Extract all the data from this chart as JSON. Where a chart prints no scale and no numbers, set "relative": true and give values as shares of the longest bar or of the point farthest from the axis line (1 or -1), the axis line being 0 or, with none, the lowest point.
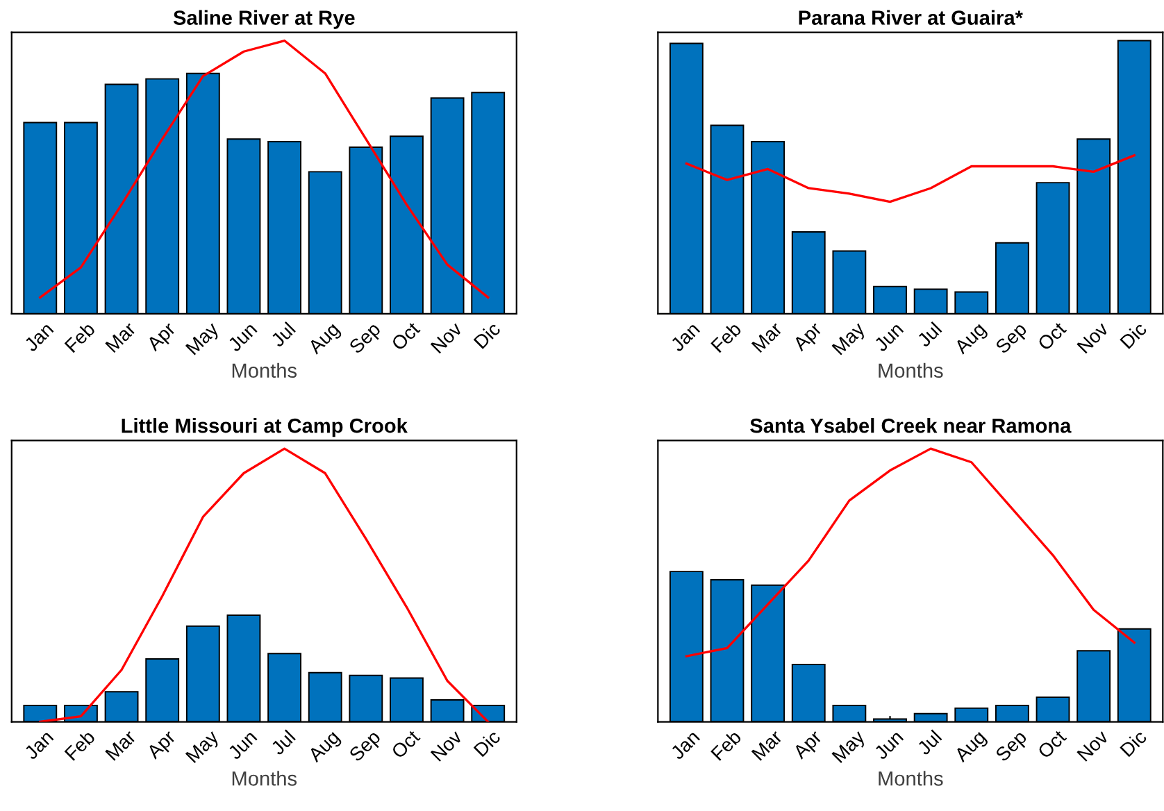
{
  "chart_data": [
    {
      "type": "bar",
      "title": "Saline River at Rye",
      "xlabel": "Months",
      "relative": true,
      "tick_labels": "x",
      "grid": false,
      "legend": false,
      "categories": [
        "Jan",
        "Feb",
        "Mar",
        "Apr",
        "May",
        "Jun",
        "Jul",
        "Aug",
        "Sep",
        "Oct",
        "Nov",
        "Dic"
      ],
      "series": [
        {
          "color": "#0072bd",
          "values": [
            0.7,
            0.7,
            0.84,
            0.86,
            0.88,
            0.64,
            0.63,
            0.52,
            0.61,
            0.65,
            0.79,
            0.81
          ]
        },
        {
          "type": "line",
          "color": "#ff0000",
          "values": [
            0.06,
            0.17,
            0.4,
            0.64,
            0.87,
            0.96,
            1.0,
            0.88,
            0.64,
            0.4,
            0.18,
            0.06
          ]
        }
      ]
    },
    {
      "type": "bar",
      "title": "Parana River at Guaira*",
      "xlabel": "Months",
      "relative": true,
      "tick_labels": "x",
      "grid": false,
      "legend": false,
      "categories": [
        "Jan",
        "Feb",
        "Mar",
        "Apr",
        "May",
        "Jun",
        "Jul",
        "Aug",
        "Sep",
        "Oct",
        "Nov",
        "Dic"
      ],
      "series": [
        {
          "color": "#0072bd",
          "values": [
            0.99,
            0.69,
            0.63,
            0.3,
            0.23,
            0.1,
            0.09,
            0.08,
            0.26,
            0.48,
            0.64,
            1.0
          ]
        },
        {
          "type": "line",
          "color": "#ff0000",
          "values": [
            0.55,
            0.49,
            0.53,
            0.46,
            0.44,
            0.41,
            0.46,
            0.54,
            0.54,
            0.54,
            0.52,
            0.58
          ]
        }
      ]
    },
    {
      "type": "bar",
      "title": "Little Missouri at Camp Crook",
      "xlabel": "Months",
      "relative": true,
      "tick_labels": "x",
      "grid": false,
      "legend": false,
      "categories": [
        "Jan",
        "Feb",
        "Mar",
        "Apr",
        "May",
        "Jun",
        "Jul",
        "Aug",
        "Sep",
        "Oct",
        "Nov",
        "Dic"
      ],
      "series": [
        {
          "color": "#0072bd",
          "values": [
            0.06,
            0.06,
            0.11,
            0.23,
            0.35,
            0.39,
            0.25,
            0.18,
            0.17,
            0.16,
            0.08,
            0.06
          ]
        },
        {
          "type": "line",
          "color": "#ff0000",
          "values": [
            0.0,
            0.02,
            0.19,
            0.46,
            0.75,
            0.91,
            1.0,
            0.91,
            0.67,
            0.42,
            0.15,
            0.0
          ]
        }
      ]
    },
    {
      "type": "bar",
      "title": "Santa Ysabel Creek near Ramona",
      "xlabel": "Months",
      "relative": true,
      "tick_labels": "x",
      "grid": false,
      "legend": false,
      "categories": [
        "Jan",
        "Feb",
        "Mar",
        "Apr",
        "May",
        "Jun",
        "Jul",
        "Aug",
        "Sep",
        "Oct",
        "Nov",
        "Dic"
      ],
      "series": [
        {
          "color": "#0072bd",
          "values": [
            0.55,
            0.52,
            0.5,
            0.21,
            0.06,
            0.01,
            0.03,
            0.05,
            0.06,
            0.09,
            0.26,
            0.34
          ]
        },
        {
          "type": "line",
          "color": "#ff0000",
          "values": [
            0.24,
            0.27,
            0.43,
            0.59,
            0.81,
            0.92,
            1.0,
            0.95,
            0.78,
            0.61,
            0.41,
            0.29
          ]
        }
      ]
    }
  ]
}
